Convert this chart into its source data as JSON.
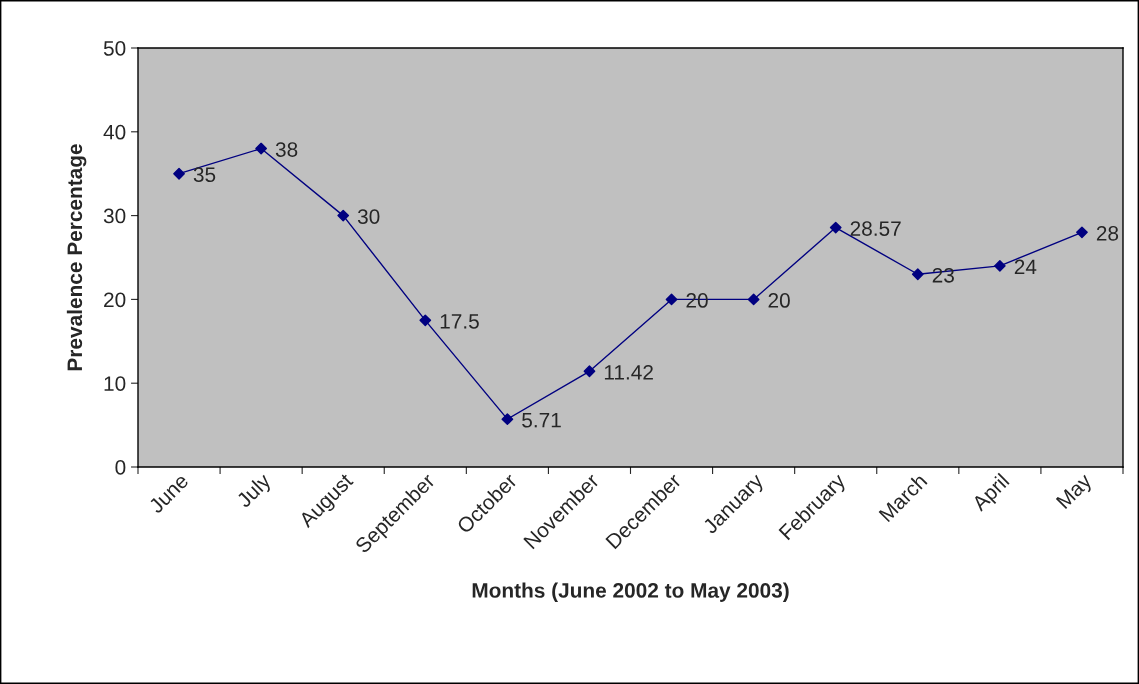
{
  "chart_data": {
    "type": "line",
    "xlabel": "Months (June 2002 to May 2003)",
    "ylabel": "Prevalence Percentage",
    "categories": [
      "June",
      "July",
      "August",
      "September",
      "October",
      "November",
      "December",
      "January",
      "February",
      "March",
      "April",
      "May"
    ],
    "series": [
      {
        "color": "#000080",
        "values": [
          35,
          38,
          30,
          17.5,
          5.71,
          11.42,
          20,
          20,
          28.57,
          23,
          24,
          28
        ]
      }
    ],
    "ylim": [
      0,
      50
    ],
    "yticks": [
      0,
      10,
      20,
      30,
      40,
      50
    ],
    "grid": false,
    "legend": false,
    "marker": "diamond",
    "line_style": "solid",
    "data_labels": true
  }
}
